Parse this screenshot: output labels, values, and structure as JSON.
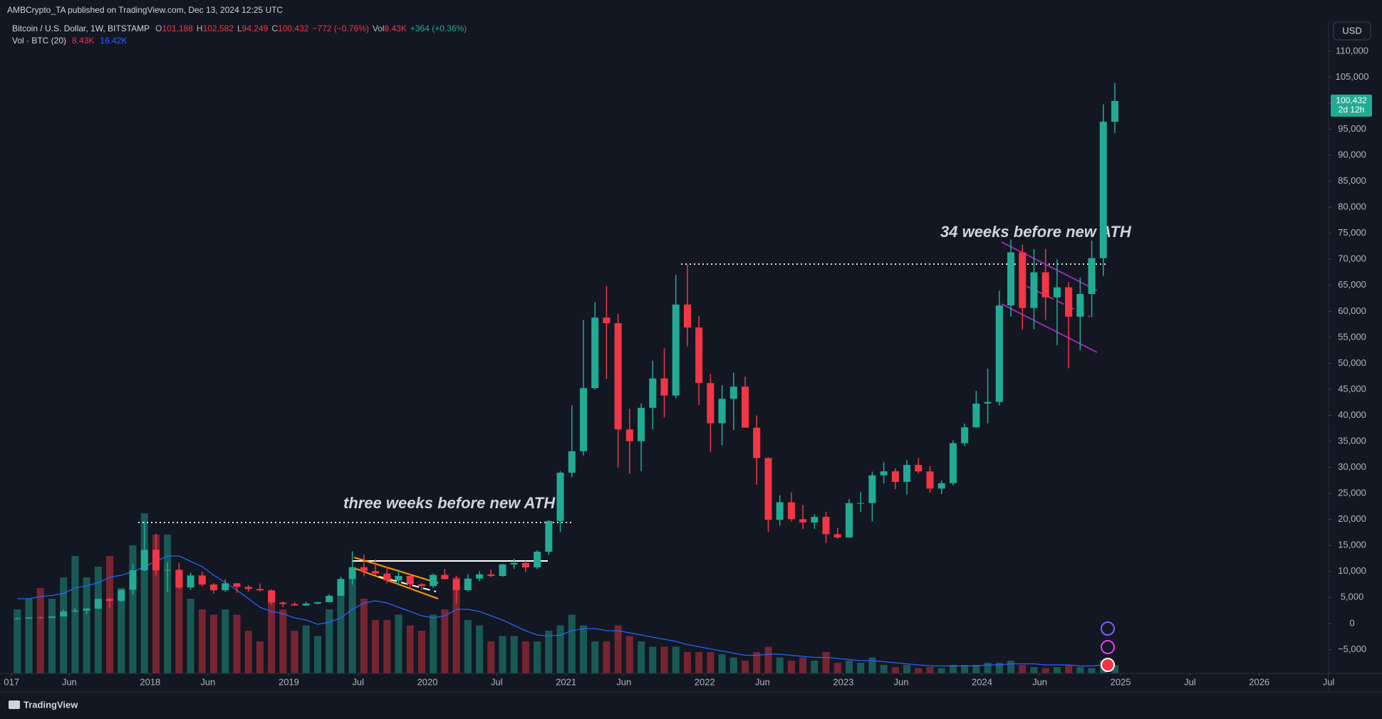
{
  "header": {
    "published": "AMBCrypto_TA published on TradingView.com, Dec 13, 2024 12:25 UTC"
  },
  "legend": {
    "symbol": "Bitcoin / U.S. Dollar, 1W, BITSTAMP",
    "ohlc": [
      {
        "label": "O",
        "value": "101,188"
      },
      {
        "label": "H",
        "value": "102,582"
      },
      {
        "label": "L",
        "value": "94,249"
      },
      {
        "label": "C",
        "value": "100,432"
      }
    ],
    "change": "−772 (−0.76%)",
    "vol_label": "Vol",
    "vol_value": "8.43K",
    "vol_change": "+364 (+0.36%)"
  },
  "volume_indicator": {
    "name": "Vol · BTC (20)",
    "value": "8.43K",
    "ma_value": "16.42K"
  },
  "currency": "USD",
  "last_price_label": "100,432",
  "countdown": "2d 12h",
  "annotations": [
    "three weeks before new ATH",
    "34 weeks before new ATH"
  ],
  "footer": "TradingView",
  "chart_data": {
    "type": "candlestick",
    "up_color": "#22ab94",
    "down_color": "#f23645",
    "ma_color": "#2962ff",
    "grid": false,
    "xlim": [
      "2016-12",
      "2026-07"
    ],
    "xticks": [
      {
        "value": "2017-01",
        "label": "017"
      },
      {
        "value": "2017-06",
        "label": "Jun"
      },
      {
        "value": "2018-01",
        "label": "2018"
      },
      {
        "value": "2018-06",
        "label": "Jun"
      },
      {
        "value": "2019-01",
        "label": "2019"
      },
      {
        "value": "2019-07",
        "label": "Jul"
      },
      {
        "value": "2020-01",
        "label": "2020"
      },
      {
        "value": "2020-07",
        "label": "Jul"
      },
      {
        "value": "2021-01",
        "label": "2021"
      },
      {
        "value": "2021-06",
        "label": "Jun"
      },
      {
        "value": "2022-01",
        "label": "2022"
      },
      {
        "value": "2022-06",
        "label": "Jun"
      },
      {
        "value": "2023-01",
        "label": "2023"
      },
      {
        "value": "2023-06",
        "label": "Jun"
      },
      {
        "value": "2024-01",
        "label": "2024"
      },
      {
        "value": "2024-06",
        "label": "Jun"
      },
      {
        "value": "2025-01",
        "label": "2025"
      },
      {
        "value": "2025-07",
        "label": "Jul"
      },
      {
        "value": "2026-01",
        "label": "2026"
      },
      {
        "value": "2026-07",
        "label": "Jul"
      }
    ],
    "ylim": [
      -9600,
      115600
    ],
    "yticks": [
      {
        "value": 110000,
        "label": "110,000"
      },
      {
        "value": 105000,
        "label": "105,000"
      },
      {
        "value": 100000,
        "label": "100,000"
      },
      {
        "value": 95000,
        "label": "95,000"
      },
      {
        "value": 90000,
        "label": "90,000"
      },
      {
        "value": 85000,
        "label": "85,000"
      },
      {
        "value": 80000,
        "label": "80,000"
      },
      {
        "value": 75000,
        "label": "75,000"
      },
      {
        "value": 70000,
        "label": "70,000"
      },
      {
        "value": 65000,
        "label": "65,000"
      },
      {
        "value": 60000,
        "label": "60,000"
      },
      {
        "value": 55000,
        "label": "55,000"
      },
      {
        "value": 50000,
        "label": "50,000"
      },
      {
        "value": 45000,
        "label": "45,000"
      },
      {
        "value": 40000,
        "label": "40,000"
      },
      {
        "value": 35000,
        "label": "35,000"
      },
      {
        "value": 30000,
        "label": "30,000"
      },
      {
        "value": 25000,
        "label": "25,000"
      },
      {
        "value": 20000,
        "label": "20,000"
      },
      {
        "value": 15000,
        "label": "15,000"
      },
      {
        "value": 10000,
        "label": "10,000"
      },
      {
        "value": 5000,
        "label": "5,000"
      },
      0,
      {
        "value": -5000,
        "label": "−5,000"
      }
    ],
    "volume_ylim": [
      0,
      200000
    ],
    "x": [
      "2017-01",
      "2017-02",
      "2017-03",
      "2017-04",
      "2017-05",
      "2017-06",
      "2017-07",
      "2017-08",
      "2017-09",
      "2017-10",
      "2017-11",
      "2017-12",
      "2018-01",
      "2018-02",
      "2018-03",
      "2018-04",
      "2018-05",
      "2018-06",
      "2018-07",
      "2018-08",
      "2018-09",
      "2018-10",
      "2018-11",
      "2018-12",
      "2019-01",
      "2019-02",
      "2019-03",
      "2019-04",
      "2019-05",
      "2019-06",
      "2019-07",
      "2019-08",
      "2019-09",
      "2019-10",
      "2019-11",
      "2019-12",
      "2020-01",
      "2020-02",
      "2020-03",
      "2020-04",
      "2020-05",
      "2020-06",
      "2020-07",
      "2020-08",
      "2020-09",
      "2020-10",
      "2020-11",
      "2020-12",
      "2021-01",
      "2021-02",
      "2021-03",
      "2021-04",
      "2021-05",
      "2021-06",
      "2021-07",
      "2021-08",
      "2021-09",
      "2021-10",
      "2021-11",
      "2021-12",
      "2022-01",
      "2022-02",
      "2022-03",
      "2022-04",
      "2022-05",
      "2022-06",
      "2022-07",
      "2022-08",
      "2022-09",
      "2022-10",
      "2022-11",
      "2022-12",
      "2023-01",
      "2023-02",
      "2023-03",
      "2023-04",
      "2023-05",
      "2023-06",
      "2023-07",
      "2023-08",
      "2023-09",
      "2023-10",
      "2023-11",
      "2023-12",
      "2024-01",
      "2024-02",
      "2024-03",
      "2024-04",
      "2024-05",
      "2024-06",
      "2024-07",
      "2024-08",
      "2024-09",
      "2024-10",
      "2024-11",
      "2024-12"
    ],
    "open": [
      960,
      970,
      1190,
      1080,
      1350,
      2300,
      2480,
      2870,
      4730,
      4340,
      6470,
      10230,
      14160,
      10220,
      10330,
      6930,
      9240,
      7490,
      6390,
      7730,
      7030,
      6630,
      6370,
      4040,
      3740,
      3460,
      3830,
      4100,
      5320,
      8570,
      10820,
      10080,
      9600,
      8290,
      9150,
      7550,
      7190,
      9350,
      8540,
      6410,
      8630,
      9450,
      9140,
      11350,
      11650,
      10780,
      13800,
      19700,
      28990,
      33110,
      45240,
      58800,
      57720,
      37300,
      35040,
      41460,
      47100,
      43820,
      61300,
      56900,
      46210,
      38480,
      43190,
      45530,
      37640,
      31800,
      19930,
      23300,
      20050,
      19420,
      20490,
      17160,
      16540,
      23140,
      23150,
      28480,
      29250,
      27220,
      30470,
      29230,
      25930,
      26970,
      34650,
      37720,
      42280,
      42580,
      61130,
      71330,
      60640,
      67500,
      62680,
      64620,
      58970,
      63330,
      70220,
      96450
    ],
    "high": [
      1150,
      1200,
      1290,
      1350,
      2760,
      2980,
      2920,
      4740,
      5000,
      6470,
      11400,
      19700,
      17250,
      11800,
      11700,
      9760,
      9990,
      7760,
      8500,
      7760,
      7400,
      7680,
      6580,
      4240,
      4110,
      4200,
      4150,
      5620,
      9000,
      13880,
      13200,
      12330,
      10930,
      10380,
      9520,
      7750,
      9590,
      10500,
      9190,
      9460,
      10080,
      10380,
      11440,
      12470,
      12050,
      14100,
      19850,
      29300,
      41950,
      58350,
      61780,
      64900,
      59500,
      41300,
      42300,
      50500,
      52900,
      66999,
      69000,
      59050,
      47990,
      45800,
      48200,
      47450,
      40000,
      31980,
      24650,
      25200,
      22800,
      21000,
      21470,
      18400,
      23950,
      25250,
      29200,
      31000,
      29820,
      31400,
      31800,
      30200,
      27490,
      35200,
      38420,
      44700,
      48970,
      63950,
      73800,
      72800,
      71950,
      71990,
      70000,
      65600,
      66500,
      73600,
      99800,
      103900
    ],
    "low": [
      750,
      920,
      890,
      1060,
      1350,
      2150,
      1830,
      2670,
      2970,
      4160,
      5500,
      10000,
      9200,
      6000,
      6600,
      6430,
      7060,
      5750,
      6070,
      5880,
      6100,
      6200,
      3650,
      3120,
      3400,
      3370,
      3660,
      4080,
      5340,
      7460,
      9070,
      9330,
      7730,
      7300,
      6520,
      6420,
      6850,
      8470,
      3850,
      6170,
      8100,
      8900,
      8980,
      10530,
      9880,
      10430,
      13200,
      17580,
      28130,
      32300,
      44950,
      47000,
      30000,
      28800,
      29280,
      37330,
      39600,
      43300,
      53250,
      42000,
      32950,
      34300,
      37200,
      37700,
      26700,
      17600,
      18800,
      19600,
      18150,
      18200,
      15480,
      16300,
      16500,
      21400,
      19600,
      26900,
      25800,
      24800,
      28860,
      25150,
      24900,
      26550,
      34100,
      37600,
      38500,
      41900,
      59000,
      56500,
      56550,
      58400,
      53500,
      49050,
      52550,
      58900,
      66800,
      94250
    ],
    "close": [
      970,
      1190,
      1080,
      1350,
      2300,
      2480,
      2870,
      4730,
      4340,
      6470,
      10230,
      14160,
      10220,
      10330,
      6930,
      9240,
      7490,
      6390,
      7730,
      7030,
      6630,
      6370,
      4040,
      3740,
      3460,
      3830,
      4100,
      5320,
      8570,
      10820,
      10080,
      9600,
      8290,
      9150,
      7550,
      7190,
      9350,
      8540,
      6410,
      8630,
      9450,
      9140,
      11350,
      11650,
      10780,
      13800,
      19700,
      28990,
      33110,
      45240,
      58800,
      57720,
      37300,
      35040,
      41460,
      47100,
      43820,
      61300,
      56900,
      46210,
      38480,
      43190,
      45530,
      37640,
      31800,
      19930,
      23300,
      20050,
      19420,
      20490,
      17160,
      16540,
      23140,
      23150,
      28480,
      29250,
      27220,
      30470,
      29230,
      25930,
      26970,
      34650,
      37720,
      42280,
      42580,
      61130,
      71330,
      60640,
      67500,
      62680,
      64620,
      58970,
      63330,
      70220,
      96450,
      100432
    ],
    "volume": [
      60000,
      70000,
      80000,
      70000,
      90000,
      110000,
      90000,
      100000,
      110000,
      80000,
      120000,
      150000,
      130000,
      130000,
      90000,
      70000,
      60000,
      55000,
      60000,
      55000,
      40000,
      30000,
      70000,
      60000,
      40000,
      45000,
      35000,
      60000,
      80000,
      90000,
      70000,
      50000,
      50000,
      55000,
      45000,
      40000,
      55000,
      60000,
      90000,
      50000,
      45000,
      30000,
      35000,
      35000,
      30000,
      30000,
      40000,
      45000,
      55000,
      45000,
      30000,
      30000,
      45000,
      35000,
      30000,
      25000,
      25000,
      25000,
      20000,
      20000,
      20000,
      18000,
      15000,
      12000,
      20000,
      25000,
      15000,
      12000,
      15000,
      12000,
      20000,
      10000,
      12000,
      10000,
      15000,
      8000,
      6000,
      8000,
      5000,
      6000,
      5000,
      8000,
      8000,
      8000,
      10000,
      10000,
      12000,
      8000,
      6000,
      5000,
      6000,
      8000,
      6000,
      5000,
      12000,
      8000
    ],
    "volume_ma": [
      70000,
      70000,
      72000,
      73000,
      75000,
      80000,
      82000,
      85000,
      90000,
      92000,
      95000,
      100000,
      105000,
      110000,
      110000,
      105000,
      100000,
      92000,
      85000,
      78000,
      70000,
      62000,
      58000,
      56000,
      52000,
      50000,
      46000,
      48000,
      52000,
      60000,
      66000,
      68000,
      66000,
      62000,
      58000,
      54000,
      52000,
      54000,
      60000,
      60000,
      58000,
      54000,
      50000,
      45000,
      40000,
      36000,
      35000,
      36000,
      40000,
      42000,
      42000,
      40000,
      40000,
      38000,
      36000,
      34000,
      32000,
      30000,
      27000,
      25000,
      23000,
      21000,
      19000,
      17000,
      17000,
      18000,
      18000,
      17000,
      16000,
      15000,
      15000,
      14000,
      13000,
      12000,
      12000,
      11000,
      10000,
      9000,
      8000,
      7000,
      7000,
      7000,
      7000,
      7000,
      8000,
      8000,
      9000,
      9000,
      9000,
      8000,
      8000,
      8000,
      7000,
      7000,
      8000,
      8000
    ]
  }
}
